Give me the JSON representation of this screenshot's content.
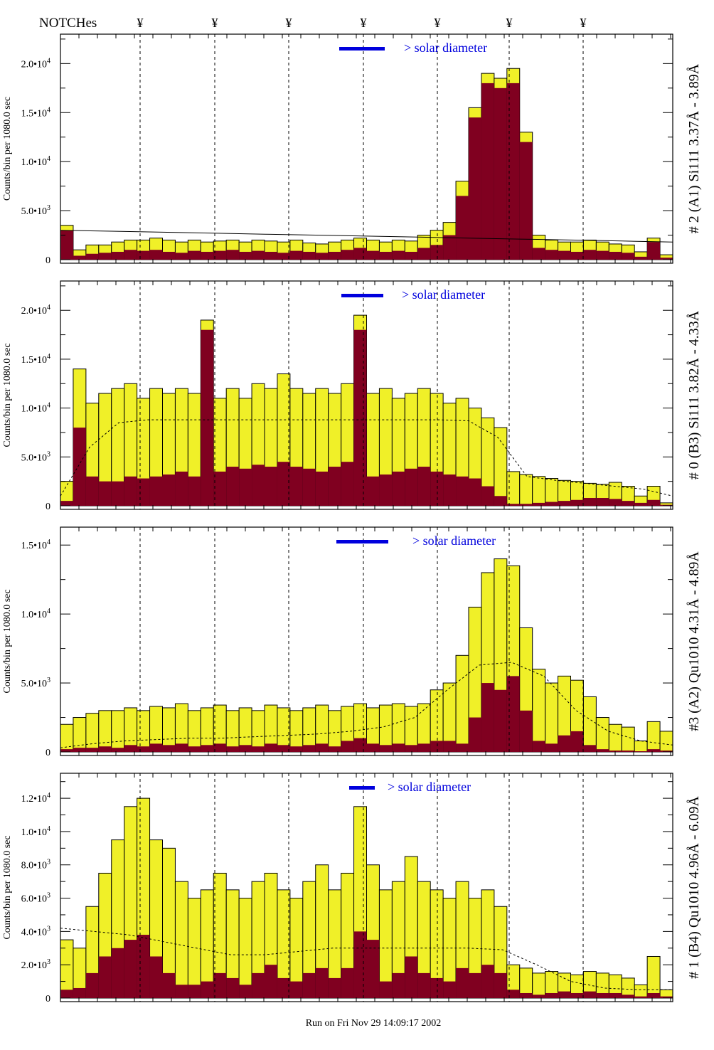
{
  "header": {
    "notch_label": "NOTCHes",
    "notch_symbol": "¥",
    "notch_count": 7
  },
  "footer": {
    "run_text": "Run on Fri Nov 29 14:09:17 2002"
  },
  "colors": {
    "total_fill": "#f0f028",
    "sub_fill": "#800020",
    "legend": "#0000dd",
    "outline": "#000000"
  },
  "chart_data": [
    {
      "type": "bar",
      "title": "# 2 (A1) Si111  3.37Å - 3.89Å",
      "ylabel": "Counts/bin per   1080.0 sec",
      "legend": "> solar diameter",
      "ylim": [
        0,
        23000
      ],
      "yticks": [
        {
          "v": 0,
          "m": "0",
          "e": ""
        },
        {
          "v": 5000,
          "m": "5.0•10",
          "e": "3"
        },
        {
          "v": 10000,
          "m": "1.0•10",
          "e": "4"
        },
        {
          "v": 15000,
          "m": "1.5•10",
          "e": "4"
        },
        {
          "v": 20000,
          "m": "2.0•10",
          "e": "4"
        }
      ],
      "total": [
        3.5,
        1.0,
        1.5,
        1.5,
        1.8,
        2.0,
        2.0,
        2.2,
        2.0,
        1.8,
        2.0,
        1.8,
        1.9,
        2.0,
        1.8,
        2.0,
        1.9,
        1.8,
        2.0,
        1.7,
        1.6,
        1.8,
        2.0,
        2.2,
        2.0,
        1.8,
        2.0,
        1.9,
        2.5,
        3.0,
        3.8,
        8.0,
        15.5,
        19.0,
        18.5,
        19.5,
        13.0,
        2.5,
        2.0,
        1.8,
        1.8,
        2.0,
        1.8,
        1.6,
        1.5,
        0.8,
        2.2,
        0.5
      ],
      "subset": [
        3.0,
        0.4,
        0.6,
        0.7,
        0.8,
        1.0,
        0.9,
        1.0,
        0.8,
        0.7,
        0.9,
        0.8,
        0.9,
        1.0,
        0.8,
        0.9,
        0.8,
        0.7,
        0.9,
        0.8,
        0.7,
        0.8,
        1.0,
        1.2,
        0.9,
        0.8,
        0.9,
        0.8,
        1.2,
        1.5,
        2.5,
        6.5,
        14.5,
        18.0,
        17.5,
        18.0,
        12.0,
        1.2,
        1.0,
        0.9,
        0.8,
        1.0,
        0.9,
        0.8,
        0.7,
        0.3,
        1.8,
        0.2
      ],
      "baseline": [
        3.0,
        2.9,
        2.8,
        2.7,
        2.6,
        2.5,
        2.4,
        2.3,
        2.2,
        2.1,
        2.0,
        1.9,
        1.8
      ],
      "baseline_style": "solid",
      "unit": 1000
    },
    {
      "type": "bar",
      "title": "# 0 (B3) Si111  3.82Å - 4.33Å",
      "ylabel": "Counts/bin per   1080.0 sec",
      "legend": "> solar diameter",
      "ylim": [
        0,
        23000
      ],
      "yticks": [
        {
          "v": 0,
          "m": "0",
          "e": ""
        },
        {
          "v": 5000,
          "m": "5.0•10",
          "e": "3"
        },
        {
          "v": 10000,
          "m": "1.0•10",
          "e": "4"
        },
        {
          "v": 15000,
          "m": "1.5•10",
          "e": "4"
        },
        {
          "v": 20000,
          "m": "2.0•10",
          "e": "4"
        }
      ],
      "total": [
        2.5,
        14,
        10.5,
        11.5,
        12,
        12.5,
        11,
        12,
        11.5,
        12,
        11.5,
        19,
        11,
        12,
        11,
        12.5,
        12,
        13.5,
        12,
        11.5,
        12,
        11.5,
        12.5,
        19.5,
        11.5,
        12,
        11,
        11.5,
        12,
        11.5,
        10.5,
        11,
        10,
        9,
        8,
        3.5,
        3.2,
        3.0,
        2.8,
        2.6,
        2.5,
        2.3,
        2.2,
        2.4,
        2.0,
        1.0,
        2.0,
        0.3
      ],
      "subset": [
        0.5,
        8,
        3,
        2.5,
        2.5,
        3,
        2.8,
        3,
        3.2,
        3.5,
        3,
        18,
        3.5,
        4,
        3.8,
        4.2,
        4,
        4.5,
        4,
        3.8,
        3.5,
        4,
        4.5,
        18,
        3,
        3.2,
        3.5,
        3.8,
        4,
        3.5,
        3.2,
        3,
        2.8,
        2,
        1,
        0.2,
        0.2,
        0.3,
        0.4,
        0.5,
        0.6,
        0.8,
        0.8,
        0.7,
        0.5,
        0.3,
        0.6,
        0.1
      ],
      "baseline": [
        1.0,
        6.0,
        8.5,
        8.8,
        8.8,
        8.8,
        8.8,
        8.8,
        8.8,
        8.8,
        8.8,
        8.8,
        8.8,
        8.8,
        8.7,
        7.0,
        3.0,
        2.6,
        2.3,
        2.0,
        1.7,
        1.0
      ],
      "baseline_style": "dotted",
      "unit": 1000
    },
    {
      "type": "bar",
      "title": "#3 (A2) Qu1010  4.31Å - 4.89Å",
      "ylabel": "Counts/bin per   1080.0 sec",
      "legend": "> solar diameter",
      "ylim": [
        0,
        16300
      ],
      "yticks": [
        {
          "v": 0,
          "m": "0",
          "e": ""
        },
        {
          "v": 5000,
          "m": "5.0•10",
          "e": "3"
        },
        {
          "v": 10000,
          "m": "1.0•10",
          "e": "4"
        },
        {
          "v": 15000,
          "m": "1.5•10",
          "e": "4"
        }
      ],
      "total": [
        2,
        2.5,
        2.8,
        3,
        3,
        3.2,
        3,
        3.3,
        3.2,
        3.5,
        3,
        3.2,
        3.4,
        3,
        3.2,
        3,
        3.4,
        3.2,
        3,
        3.2,
        3.4,
        3,
        3.3,
        3.5,
        3.2,
        3.4,
        3.5,
        3.3,
        3.5,
        4.5,
        5,
        7,
        10.5,
        13,
        14,
        13.5,
        9,
        6,
        5,
        5.5,
        5.2,
        4,
        2.5,
        2,
        1.8,
        0.8,
        2.2,
        1.5
      ],
      "subset": [
        0.2,
        0.3,
        0.3,
        0.4,
        0.3,
        0.5,
        0.4,
        0.6,
        0.5,
        0.6,
        0.4,
        0.5,
        0.6,
        0.4,
        0.5,
        0.4,
        0.6,
        0.5,
        0.4,
        0.5,
        0.6,
        0.4,
        0.8,
        1.0,
        0.6,
        0.5,
        0.6,
        0.5,
        0.6,
        0.8,
        0.8,
        0.6,
        2.5,
        5,
        4.5,
        5.5,
        3,
        0.8,
        0.6,
        1.2,
        1.5,
        0.5,
        0.2,
        0.1,
        0.1,
        0.05,
        0.2,
        0.1
      ],
      "baseline": [
        0.3,
        0.6,
        0.8,
        0.9,
        1.0,
        1.0,
        1.1,
        1.2,
        1.3,
        1.5,
        1.8,
        2.5,
        4.5,
        6.3,
        6.5,
        5.5,
        3.0,
        1.5,
        0.8,
        0.5
      ],
      "baseline_style": "dotted",
      "unit": 1000
    },
    {
      "type": "bar",
      "title": "# 1 (B4) Qu1010 4.96Å - 6.09Å",
      "ylabel": "Counts/bin per   1080.0 sec",
      "legend": "> solar diameter",
      "ylim": [
        0,
        13500
      ],
      "yticks": [
        {
          "v": 0,
          "m": "0",
          "e": ""
        },
        {
          "v": 2000,
          "m": "2.0•10",
          "e": "3"
        },
        {
          "v": 4000,
          "m": "4.0•10",
          "e": "3"
        },
        {
          "v": 6000,
          "m": "6.0•10",
          "e": "3"
        },
        {
          "v": 8000,
          "m": "8.0•10",
          "e": "3"
        },
        {
          "v": 10000,
          "m": "1.0•10",
          "e": "4"
        },
        {
          "v": 12000,
          "m": "1.2•10",
          "e": "4"
        }
      ],
      "total": [
        3.5,
        3,
        5.5,
        7.5,
        9.5,
        11.5,
        12,
        9.5,
        9,
        7,
        6,
        6.5,
        7.5,
        6.5,
        6,
        7,
        7.5,
        6.5,
        6,
        7,
        8,
        6.5,
        7.5,
        11.5,
        8,
        6.5,
        7,
        8.5,
        7,
        6.5,
        6,
        7,
        6,
        6.5,
        5.5,
        2,
        1.8,
        1.5,
        1.6,
        1.5,
        1.4,
        1.6,
        1.5,
        1.4,
        1.2,
        0.8,
        2.5,
        0.5
      ],
      "subset": [
        0.5,
        0.6,
        1.5,
        2.5,
        3,
        3.5,
        3.8,
        2.5,
        1.5,
        0.8,
        0.8,
        1,
        1.5,
        1.2,
        0.8,
        1.5,
        2,
        1.2,
        1,
        1.5,
        1.8,
        1.2,
        1.8,
        4,
        3.5,
        1,
        1.5,
        2.5,
        1.5,
        1.2,
        1,
        1.8,
        1.5,
        2,
        1.5,
        0.5,
        0.3,
        0.2,
        0.3,
        0.4,
        0.3,
        0.4,
        0.3,
        0.3,
        0.2,
        0.1,
        0.3,
        0.1
      ],
      "baseline": [
        4.2,
        4.0,
        3.8,
        3.4,
        3.0,
        2.6,
        2.6,
        2.8,
        3.0,
        3.0,
        3.0,
        3.0,
        3.0,
        2.9,
        2.0,
        1.0,
        0.6,
        0.5,
        0.5
      ],
      "baseline_style": "dotted",
      "unit": 1000
    }
  ]
}
